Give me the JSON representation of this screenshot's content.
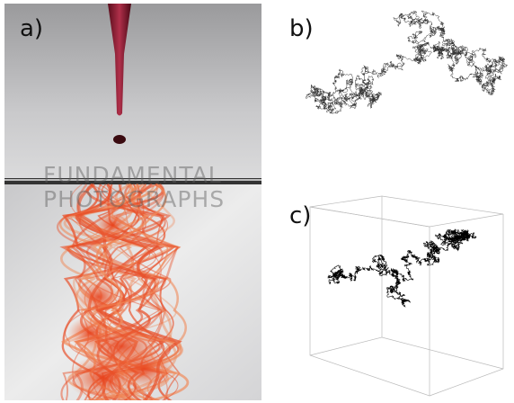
{
  "panels": [
    {
      "label": "a)"
    },
    {
      "label": "b)"
    },
    {
      "label": "c)"
    }
  ],
  "watermark": {
    "line1": "FUNDAMENTAL",
    "line2": "PHOTOGRAPHS"
  }
}
